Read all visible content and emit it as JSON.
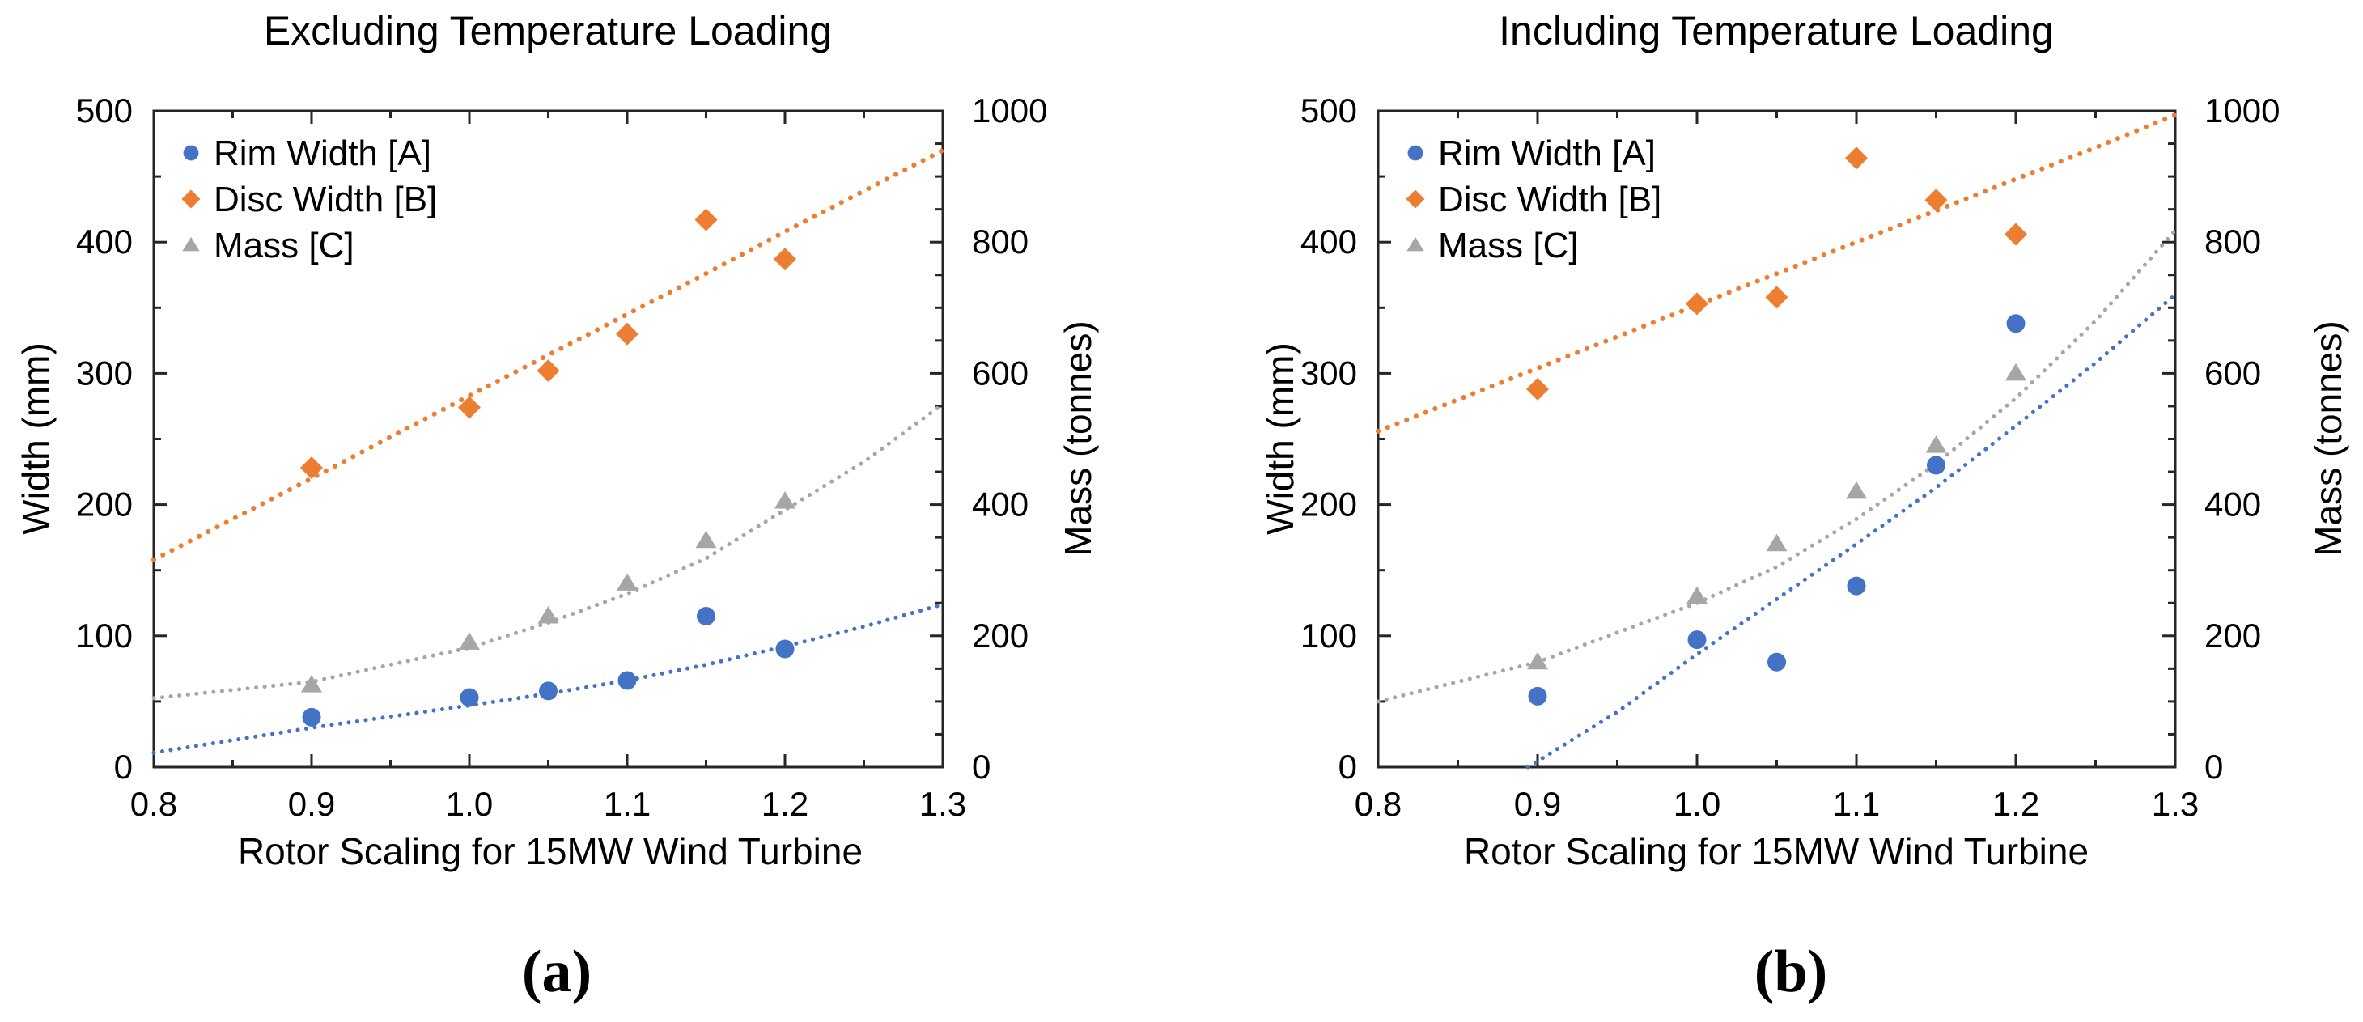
{
  "figure": {
    "background": "#ffffff",
    "axis_color": "#262626",
    "text_color": "#000000"
  },
  "chart_data": [
    {
      "type": "scatter",
      "panel_id": "a",
      "caption": "(a)",
      "title": "Excluding Temperature Loading",
      "xlabel": "Rotor Scaling for 15MW Wind Turbine",
      "ylabel_left": "Width (mm)",
      "ylabel_right": "Mass (tonnes)",
      "xlim": [
        0.8,
        1.3
      ],
      "ylim_left": [
        0,
        500
      ],
      "ylim_right": [
        0,
        1000
      ],
      "x_tick_labels": [
        "0.8",
        "0.9",
        "1.0",
        "1.1",
        "1.2",
        "1.3"
      ],
      "x_minor_step": 0.05,
      "y_left_tick_labels": [
        "0",
        "100",
        "200",
        "300",
        "400",
        "500"
      ],
      "y_left_minor_step": 50,
      "y_right_tick_labels": [
        "0",
        "200",
        "400",
        "600",
        "800",
        "1000"
      ],
      "y_right_minor_step": 50,
      "grid": false,
      "legend_position": "top-left",
      "series": [
        {
          "name": "Rim Width [A]",
          "marker": "circle",
          "color": "#4472C4",
          "axis": "left",
          "units": "mm",
          "x": [
            0.9,
            1.0,
            1.05,
            1.1,
            1.15,
            1.2
          ],
          "y": [
            38,
            53,
            58,
            66,
            115,
            90
          ],
          "trend_x": [
            0.8,
            0.9,
            1.0,
            1.05,
            1.1,
            1.15,
            1.2,
            1.25,
            1.3
          ],
          "trend_y": [
            11,
            30,
            47,
            56,
            66,
            78,
            92,
            107,
            124
          ]
        },
        {
          "name": "Disc Width [B]",
          "marker": "diamond",
          "color": "#ED7D31",
          "axis": "left",
          "units": "mm",
          "x": [
            0.9,
            1.0,
            1.05,
            1.1,
            1.15,
            1.2
          ],
          "y": [
            228,
            274,
            302,
            330,
            417,
            387
          ],
          "trend_x": [
            0.8,
            0.9,
            1.0,
            1.05,
            1.1,
            1.15,
            1.2,
            1.25,
            1.3
          ],
          "trend_y": [
            158,
            220,
            283,
            314,
            345,
            376,
            408,
            439,
            470
          ]
        },
        {
          "name": "Mass [C]",
          "marker": "triangle",
          "color": "#A6A6A6",
          "axis": "right",
          "units": "tonnes",
          "x": [
            0.9,
            1.0,
            1.05,
            1.1,
            1.15,
            1.2
          ],
          "y": [
            125,
            190,
            230,
            280,
            345,
            405
          ],
          "trend_x": [
            0.8,
            0.9,
            1.0,
            1.05,
            1.1,
            1.15,
            1.2,
            1.25,
            1.3
          ],
          "trend_y": [
            105,
            130,
            182,
            220,
            264,
            318,
            392,
            465,
            553
          ]
        }
      ]
    },
    {
      "type": "scatter",
      "panel_id": "b",
      "caption": "(b)",
      "title": "Including Temperature Loading",
      "xlabel": "Rotor Scaling for 15MW Wind Turbine",
      "ylabel_left": "Width (mm)",
      "ylabel_right": "Mass (tonnes)",
      "xlim": [
        0.8,
        1.3
      ],
      "ylim_left": [
        0,
        500
      ],
      "ylim_right": [
        0,
        1000
      ],
      "x_tick_labels": [
        "0.8",
        "0.9",
        "1.0",
        "1.1",
        "1.2",
        "1.3"
      ],
      "x_minor_step": 0.05,
      "y_left_tick_labels": [
        "0",
        "100",
        "200",
        "300",
        "400",
        "500"
      ],
      "y_left_minor_step": 50,
      "y_right_tick_labels": [
        "0",
        "200",
        "400",
        "600",
        "800",
        "1000"
      ],
      "y_right_minor_step": 50,
      "grid": false,
      "legend_position": "top-left",
      "series": [
        {
          "name": "Rim Width [A]",
          "marker": "circle",
          "color": "#4472C4",
          "axis": "left",
          "units": "mm",
          "x": [
            0.9,
            1.0,
            1.05,
            1.1,
            1.15,
            1.2
          ],
          "y": [
            54,
            97,
            80,
            138,
            230,
            338
          ],
          "trend_x": [
            0.894,
            0.95,
            1.0,
            1.05,
            1.1,
            1.15,
            1.2,
            1.25,
            1.3
          ],
          "trend_y": [
            0,
            42,
            86,
            128,
            170,
            213,
            260,
            308,
            360
          ]
        },
        {
          "name": "Disc Width [B]",
          "marker": "diamond",
          "color": "#ED7D31",
          "axis": "left",
          "units": "mm",
          "x": [
            0.9,
            1.0,
            1.05,
            1.1,
            1.15,
            1.2
          ],
          "y": [
            288,
            353,
            358,
            464,
            432,
            406
          ],
          "trend_x": [
            0.8,
            0.9,
            1.0,
            1.05,
            1.1,
            1.15,
            1.2,
            1.25,
            1.3
          ],
          "trend_y": [
            256,
            304,
            352,
            376,
            400,
            424,
            448,
            472,
            497
          ]
        },
        {
          "name": "Mass [C]",
          "marker": "triangle",
          "color": "#A6A6A6",
          "axis": "right",
          "units": "tonnes",
          "x": [
            0.9,
            1.0,
            1.05,
            1.1,
            1.15,
            1.2
          ],
          "y": [
            160,
            260,
            340,
            420,
            490,
            600
          ],
          "trend_x": [
            0.8,
            0.9,
            1.0,
            1.05,
            1.1,
            1.15,
            1.2,
            1.25,
            1.3
          ],
          "trend_y": [
            100,
            160,
            250,
            305,
            378,
            462,
            562,
            680,
            818
          ]
        }
      ]
    }
  ]
}
